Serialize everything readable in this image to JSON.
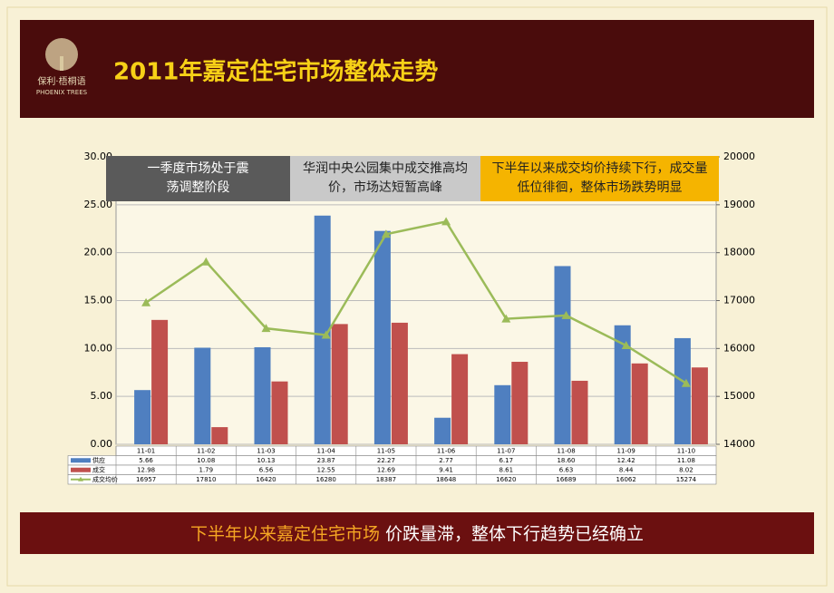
{
  "header": {
    "title": "2011年嘉定住宅市场整体走势",
    "logo_name": "保利·梧桐语",
    "logo_subtitle": "PHOENIX TREES"
  },
  "chart_data": {
    "type": "bar",
    "categories": [
      "11-01",
      "11-02",
      "11-03",
      "11-04",
      "11-05",
      "11-06",
      "11-07",
      "11-08",
      "11-09",
      "11-10"
    ],
    "series": [
      {
        "name": "供应",
        "color": "#4f7fc0",
        "kind": "bar",
        "values": [
          5.66,
          10.08,
          10.13,
          23.87,
          22.27,
          2.77,
          6.17,
          18.6,
          12.42,
          11.08
        ],
        "value_labels": [
          "5.66",
          "10.08",
          "10.13",
          "23.87",
          "22.27",
          "2.77",
          "6.17",
          "18.60",
          "12.42",
          "11.08"
        ]
      },
      {
        "name": "成交",
        "color": "#c0504d",
        "kind": "bar",
        "values": [
          12.98,
          1.79,
          6.56,
          12.55,
          12.69,
          9.41,
          8.61,
          6.63,
          8.44,
          8.02
        ],
        "value_labels": [
          "12.98",
          "1.79",
          "6.56",
          "12.55",
          "12.69",
          "9.41",
          "8.61",
          "6.63",
          "8.44",
          "8.02"
        ]
      },
      {
        "name": "成交均价",
        "color": "#9bbb59",
        "kind": "line",
        "axis": "y2",
        "values": [
          16957,
          17810,
          16420,
          16280,
          18387,
          18648,
          16620,
          16689,
          16062,
          15274
        ],
        "value_labels": [
          "16957",
          "17810",
          "16420",
          "16280",
          "18387",
          "18648",
          "16620",
          "16689",
          "16062",
          "15274"
        ]
      }
    ],
    "ylim": [
      0,
      30
    ],
    "yticks": [
      {
        "value": 0,
        "label": "0.00"
      },
      {
        "value": 5,
        "label": "5.00"
      },
      {
        "value": 10,
        "label": "10.00"
      },
      {
        "value": 15,
        "label": "15.00"
      },
      {
        "value": 20,
        "label": "20.00"
      },
      {
        "value": 25,
        "label": "25.00"
      },
      {
        "value": 30,
        "label": "30.00"
      }
    ],
    "y2lim": [
      14000,
      20000
    ],
    "y2ticks": [
      14000,
      15000,
      16000,
      17000,
      18000,
      19000,
      20000
    ],
    "grid": true,
    "annotations": [
      "一季度市场处于震荡调整阶段",
      "华润中央公园集中成交推高均价，市场达短暂高峰",
      "下半年以来成交均价持续下行，成交量低位徘徊，整体市场跌势明显"
    ]
  },
  "banner": {
    "highlight": "下半年以来嘉定住宅市场",
    "text": " 价跌量滞，整体下行趋势已经确立"
  }
}
